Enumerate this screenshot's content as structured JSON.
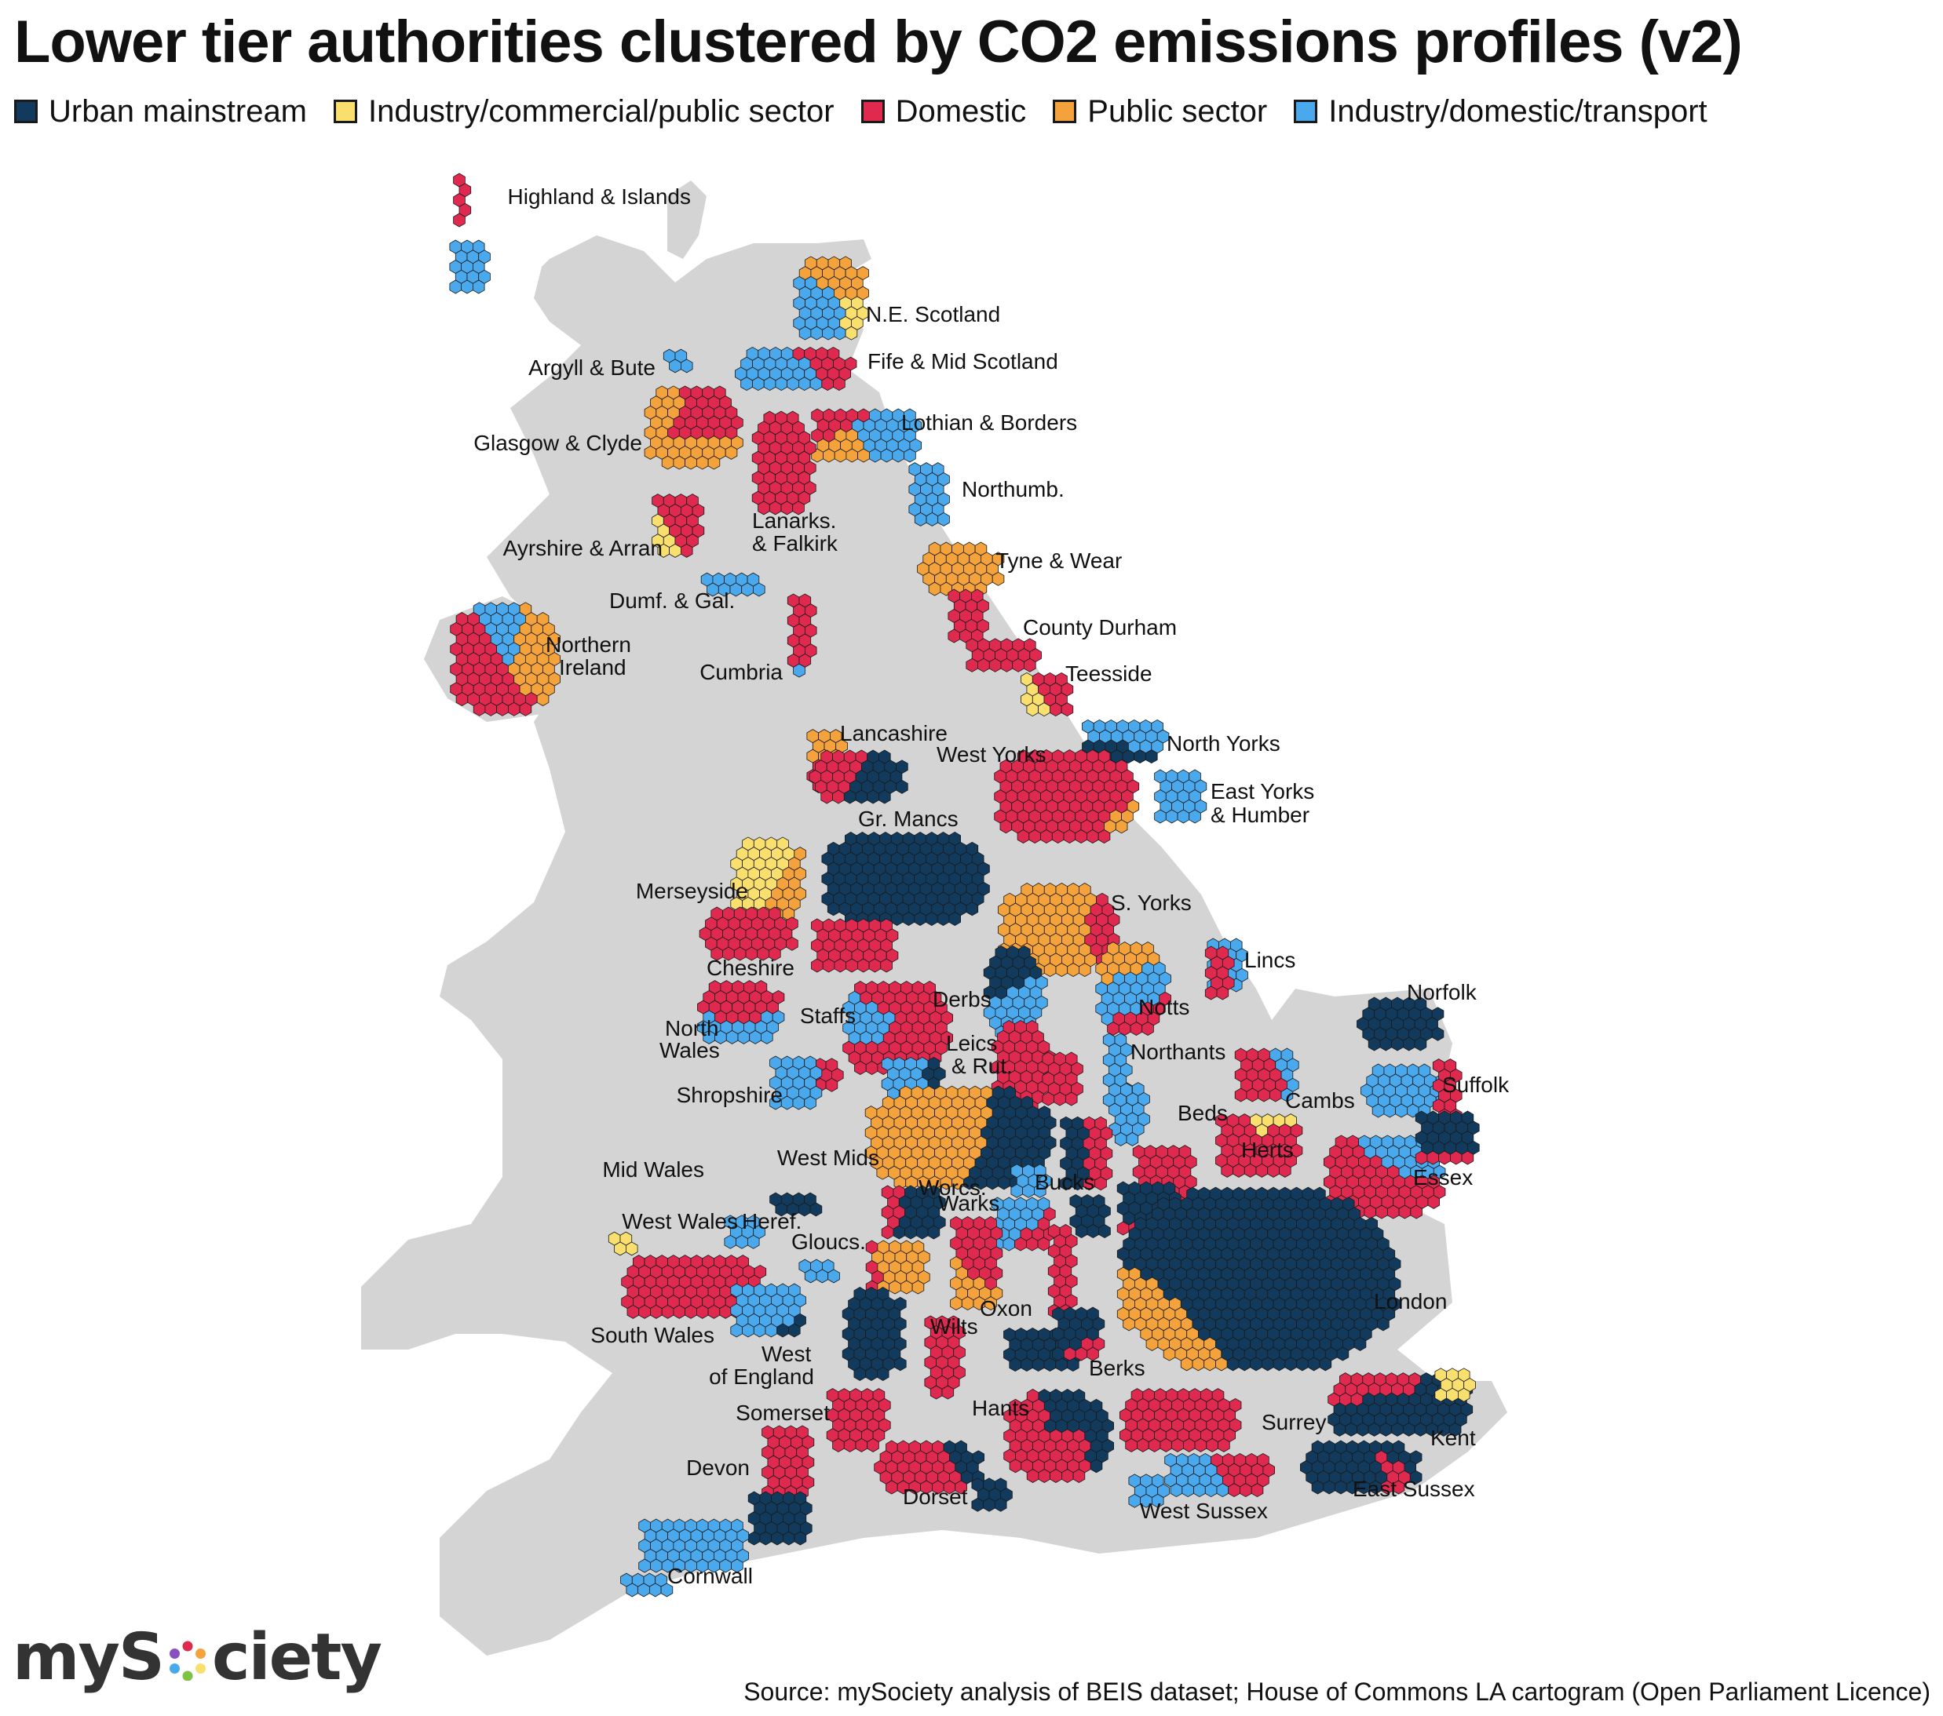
{
  "title": "Lower tier authorities clustered by CO2 emissions profiles (v2)",
  "legend": [
    {
      "label": "Urban mainstream",
      "color": "#123a5c"
    },
    {
      "label": "Industry/commercial/public sector",
      "color": "#f9df6e"
    },
    {
      "label": "Domestic",
      "color": "#e0294f"
    },
    {
      "label": "Public sector",
      "color": "#f3a23c"
    },
    {
      "label": "Industry/domestic/transport",
      "color": "#4aa8ec"
    }
  ],
  "land_color": "#d4d4d4",
  "regions": [
    {
      "name": "Highland & Islands"
    },
    {
      "name": "N.E. Scotland"
    },
    {
      "name": "Argyll & Bute"
    },
    {
      "name": "Fife & Mid Scotland"
    },
    {
      "name": "Lothian & Borders"
    },
    {
      "name": "Glasgow & Clyde"
    },
    {
      "name": "Lanarks."
    },
    {
      "name": "& Falkirk"
    },
    {
      "name": "Northumb."
    },
    {
      "name": "Ayrshire & Arran"
    },
    {
      "name": "Tyne & Wear"
    },
    {
      "name": "Dumf. & Gal."
    },
    {
      "name": "County Durham"
    },
    {
      "name": "Northern"
    },
    {
      "name": "Ireland"
    },
    {
      "name": "Cumbria"
    },
    {
      "name": "Teesside"
    },
    {
      "name": "Lancashire"
    },
    {
      "name": "North Yorks"
    },
    {
      "name": "West Yorks"
    },
    {
      "name": "East Yorks"
    },
    {
      "name": "& Humber"
    },
    {
      "name": "Gr. Mancs"
    },
    {
      "name": "Merseyside"
    },
    {
      "name": "S. Yorks"
    },
    {
      "name": "Cheshire"
    },
    {
      "name": "Lincs"
    },
    {
      "name": "Norfolk"
    },
    {
      "name": "Derbs"
    },
    {
      "name": "Notts"
    },
    {
      "name": "North"
    },
    {
      "name": "Wales"
    },
    {
      "name": "Staffs"
    },
    {
      "name": "Leics"
    },
    {
      "name": "& Rut."
    },
    {
      "name": "Northants"
    },
    {
      "name": "Shropshire"
    },
    {
      "name": "Suffolk"
    },
    {
      "name": "Cambs"
    },
    {
      "name": "Beds"
    },
    {
      "name": "Mid Wales"
    },
    {
      "name": "West Mids"
    },
    {
      "name": "Herts"
    },
    {
      "name": "Essex"
    },
    {
      "name": "Bucks"
    },
    {
      "name": "Worcs."
    },
    {
      "name": "Warks"
    },
    {
      "name": "West Wales"
    },
    {
      "name": "Heref."
    },
    {
      "name": "Gloucs."
    },
    {
      "name": "Oxon"
    },
    {
      "name": "London"
    },
    {
      "name": "South Wales"
    },
    {
      "name": "West"
    },
    {
      "name": "of England"
    },
    {
      "name": "Wilts"
    },
    {
      "name": "Berks"
    },
    {
      "name": "Somerset"
    },
    {
      "name": "Hants"
    },
    {
      "name": "Surrey"
    },
    {
      "name": "Kent"
    },
    {
      "name": "Devon"
    },
    {
      "name": "Dorset"
    },
    {
      "name": "East Sussex"
    },
    {
      "name": "West Sussex"
    },
    {
      "name": "Cornwall"
    }
  ],
  "logo": {
    "text_before": "myS",
    "text_after": "ciety",
    "ring_colors": [
      "#e0294f",
      "#f3a23c",
      "#f9df6e",
      "#7dc242",
      "#4aa8ec",
      "#8a4fbf"
    ]
  },
  "source": "Source: mySociety analysis of BEIS dataset; House of Commons LA cartogram (Open Parliament Licence)"
}
